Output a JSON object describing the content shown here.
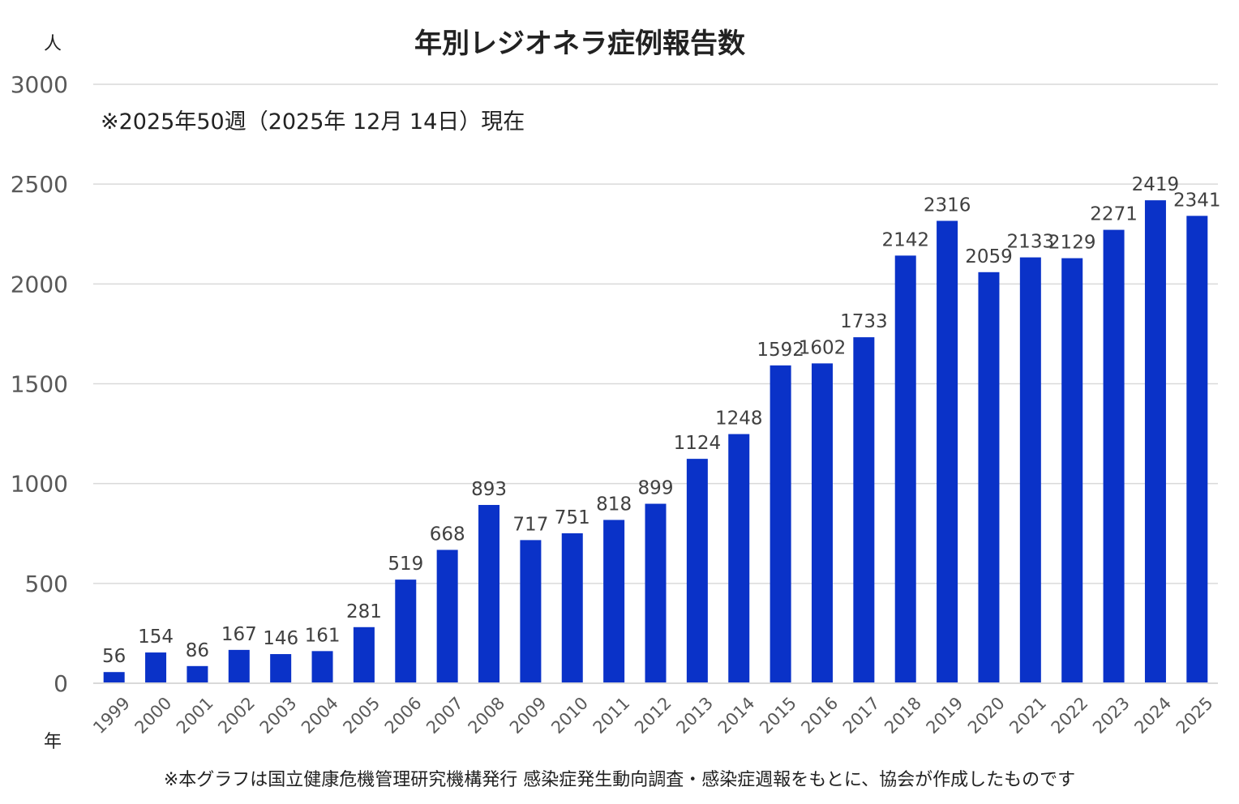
{
  "chart_data": {
    "type": "bar",
    "title": "年別レジオネラ症例報告数",
    "subtitle": "※2025年50週（2025年 12月 14日）現在",
    "ylabel": "人",
    "xlabel": "年",
    "footnote": "※本グラフは国立健康危機管理研究機構発行 感染症発生動向調査・感染症週報をもとに、協会が作成したものです",
    "ylim": [
      0,
      3000
    ],
    "yticks": [
      0,
      500,
      1000,
      1500,
      2000,
      2500,
      3000
    ],
    "grid": true,
    "bar_color": "#0a32c8",
    "categories": [
      "1999",
      "2000",
      "2001",
      "2002",
      "2003",
      "2004",
      "2005",
      "2006",
      "2007",
      "2008",
      "2009",
      "2010",
      "2011",
      "2012",
      "2013",
      "2014",
      "2015",
      "2016",
      "2017",
      "2018",
      "2019",
      "2020",
      "2021",
      "2022",
      "2023",
      "2024",
      "2025"
    ],
    "values": [
      56,
      154,
      86,
      167,
      146,
      161,
      281,
      519,
      668,
      893,
      717,
      751,
      818,
      899,
      1124,
      1248,
      1592,
      1602,
      1733,
      2142,
      2316,
      2059,
      2133,
      2129,
      2271,
      2419,
      2341
    ]
  }
}
